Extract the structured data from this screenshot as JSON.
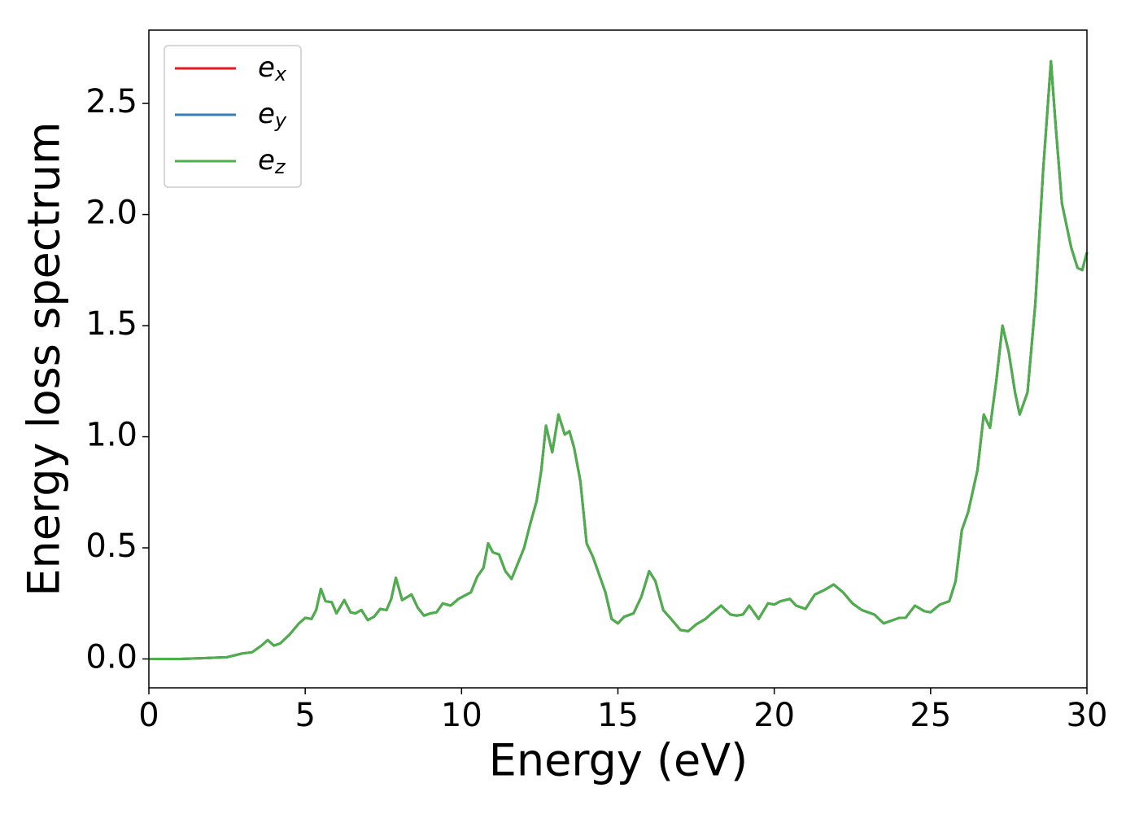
{
  "chart_data": {
    "type": "line",
    "xlabel": "Energy (eV)",
    "ylabel": "Energy loss spectrum",
    "x": [
      0,
      1,
      2,
      2.5,
      3,
      3.3,
      3.6,
      3.8,
      4.0,
      4.2,
      4.5,
      4.8,
      5.0,
      5.2,
      5.35,
      5.5,
      5.65,
      5.85,
      6.0,
      6.25,
      6.45,
      6.6,
      6.8,
      7.0,
      7.2,
      7.4,
      7.6,
      7.75,
      7.9,
      8.1,
      8.4,
      8.6,
      8.8,
      9.0,
      9.2,
      9.4,
      9.65,
      9.9,
      10.1,
      10.3,
      10.5,
      10.7,
      10.85,
      11.0,
      11.2,
      11.4,
      11.6,
      11.8,
      12.0,
      12.2,
      12.4,
      12.55,
      12.7,
      12.9,
      13.1,
      13.3,
      13.45,
      13.6,
      13.8,
      14.0,
      14.2,
      14.4,
      14.6,
      14.8,
      15.0,
      15.2,
      15.5,
      15.75,
      16.0,
      16.2,
      16.45,
      16.7,
      17.0,
      17.25,
      17.5,
      17.8,
      18.0,
      18.3,
      18.6,
      18.8,
      19.0,
      19.2,
      19.5,
      19.8,
      20.0,
      20.2,
      20.5,
      20.7,
      21.0,
      21.3,
      21.6,
      21.9,
      22.2,
      22.5,
      22.8,
      23.0,
      23.2,
      23.5,
      23.8,
      24.0,
      24.2,
      24.5,
      24.8,
      25.0,
      25.3,
      25.6,
      25.8,
      26.0,
      26.2,
      26.5,
      26.7,
      26.9,
      27.1,
      27.3,
      27.5,
      27.7,
      27.85,
      28.1,
      28.35,
      28.6,
      28.85,
      29.0,
      29.2,
      29.5,
      29.7,
      29.85,
      30.0
    ],
    "series": [
      {
        "name": "ex",
        "color": "#e41a1c",
        "values": [
          0,
          0,
          0.005,
          0.008,
          0.025,
          0.03,
          0.06,
          0.085,
          0.06,
          0.07,
          0.11,
          0.16,
          0.185,
          0.18,
          0.22,
          0.315,
          0.26,
          0.255,
          0.205,
          0.265,
          0.21,
          0.205,
          0.22,
          0.175,
          0.19,
          0.225,
          0.22,
          0.27,
          0.365,
          0.265,
          0.29,
          0.23,
          0.195,
          0.205,
          0.21,
          0.25,
          0.24,
          0.27,
          0.285,
          0.3,
          0.37,
          0.41,
          0.52,
          0.48,
          0.47,
          0.395,
          0.36,
          0.43,
          0.5,
          0.61,
          0.71,
          0.85,
          1.05,
          0.93,
          1.1,
          1.01,
          1.025,
          0.95,
          0.8,
          0.52,
          0.46,
          0.38,
          0.3,
          0.18,
          0.16,
          0.19,
          0.205,
          0.28,
          0.395,
          0.35,
          0.22,
          0.18,
          0.13,
          0.125,
          0.155,
          0.18,
          0.205,
          0.24,
          0.2,
          0.195,
          0.2,
          0.24,
          0.18,
          0.25,
          0.245,
          0.26,
          0.27,
          0.24,
          0.225,
          0.29,
          0.31,
          0.335,
          0.3,
          0.25,
          0.22,
          0.21,
          0.2,
          0.16,
          0.175,
          0.185,
          0.185,
          0.24,
          0.215,
          0.21,
          0.245,
          0.26,
          0.35,
          0.58,
          0.66,
          0.85,
          1.1,
          1.04,
          1.25,
          1.5,
          1.38,
          1.2,
          1.1,
          1.2,
          1.6,
          2.2,
          2.69,
          2.4,
          2.05,
          1.85,
          1.76,
          1.75,
          1.83
        ]
      },
      {
        "name": "ey",
        "color": "#377eb8",
        "values": [
          0,
          0,
          0.005,
          0.008,
          0.025,
          0.03,
          0.06,
          0.085,
          0.06,
          0.07,
          0.11,
          0.16,
          0.185,
          0.18,
          0.22,
          0.315,
          0.26,
          0.255,
          0.205,
          0.265,
          0.21,
          0.205,
          0.22,
          0.175,
          0.19,
          0.225,
          0.22,
          0.27,
          0.365,
          0.265,
          0.29,
          0.23,
          0.195,
          0.205,
          0.21,
          0.25,
          0.24,
          0.27,
          0.285,
          0.3,
          0.37,
          0.41,
          0.52,
          0.48,
          0.47,
          0.395,
          0.36,
          0.43,
          0.5,
          0.61,
          0.71,
          0.85,
          1.05,
          0.93,
          1.1,
          1.01,
          1.025,
          0.95,
          0.8,
          0.52,
          0.46,
          0.38,
          0.3,
          0.18,
          0.16,
          0.19,
          0.205,
          0.28,
          0.395,
          0.35,
          0.22,
          0.18,
          0.13,
          0.125,
          0.155,
          0.18,
          0.205,
          0.24,
          0.2,
          0.195,
          0.2,
          0.24,
          0.18,
          0.25,
          0.245,
          0.26,
          0.27,
          0.24,
          0.225,
          0.29,
          0.31,
          0.335,
          0.3,
          0.25,
          0.22,
          0.21,
          0.2,
          0.16,
          0.175,
          0.185,
          0.185,
          0.24,
          0.215,
          0.21,
          0.245,
          0.26,
          0.35,
          0.58,
          0.66,
          0.85,
          1.1,
          1.04,
          1.25,
          1.5,
          1.38,
          1.2,
          1.1,
          1.2,
          1.6,
          2.2,
          2.69,
          2.4,
          2.05,
          1.85,
          1.76,
          1.75,
          1.83
        ]
      },
      {
        "name": "ez",
        "color": "#4daf4a",
        "values": [
          0,
          0,
          0.005,
          0.008,
          0.025,
          0.03,
          0.06,
          0.085,
          0.06,
          0.07,
          0.11,
          0.16,
          0.185,
          0.18,
          0.22,
          0.315,
          0.26,
          0.255,
          0.205,
          0.265,
          0.21,
          0.205,
          0.22,
          0.175,
          0.19,
          0.225,
          0.22,
          0.27,
          0.365,
          0.265,
          0.29,
          0.23,
          0.195,
          0.205,
          0.21,
          0.25,
          0.24,
          0.27,
          0.285,
          0.3,
          0.37,
          0.41,
          0.52,
          0.48,
          0.47,
          0.395,
          0.36,
          0.43,
          0.5,
          0.61,
          0.71,
          0.85,
          1.05,
          0.93,
          1.1,
          1.01,
          1.025,
          0.95,
          0.8,
          0.52,
          0.46,
          0.38,
          0.3,
          0.18,
          0.16,
          0.19,
          0.205,
          0.28,
          0.395,
          0.35,
          0.22,
          0.18,
          0.13,
          0.125,
          0.155,
          0.18,
          0.205,
          0.24,
          0.2,
          0.195,
          0.2,
          0.24,
          0.18,
          0.25,
          0.245,
          0.26,
          0.27,
          0.24,
          0.225,
          0.29,
          0.31,
          0.335,
          0.3,
          0.25,
          0.22,
          0.21,
          0.2,
          0.16,
          0.175,
          0.185,
          0.185,
          0.24,
          0.215,
          0.21,
          0.245,
          0.26,
          0.35,
          0.58,
          0.66,
          0.85,
          1.1,
          1.04,
          1.25,
          1.5,
          1.38,
          1.2,
          1.1,
          1.2,
          1.6,
          2.2,
          2.69,
          2.4,
          2.05,
          1.85,
          1.76,
          1.75,
          1.83
        ]
      }
    ],
    "xlim": [
      0,
      30
    ],
    "xticks": [
      0,
      5,
      10,
      15,
      20,
      25,
      30
    ],
    "ylim": [
      -0.13,
      2.83
    ],
    "yticks": [
      {
        "value": 0,
        "label": "0.0"
      },
      0.5,
      {
        "value": 1,
        "label": "1.0"
      },
      1.5,
      {
        "value": 2,
        "label": "2.0"
      },
      2.5
    ],
    "grid": false,
    "legend": "upper left"
  }
}
